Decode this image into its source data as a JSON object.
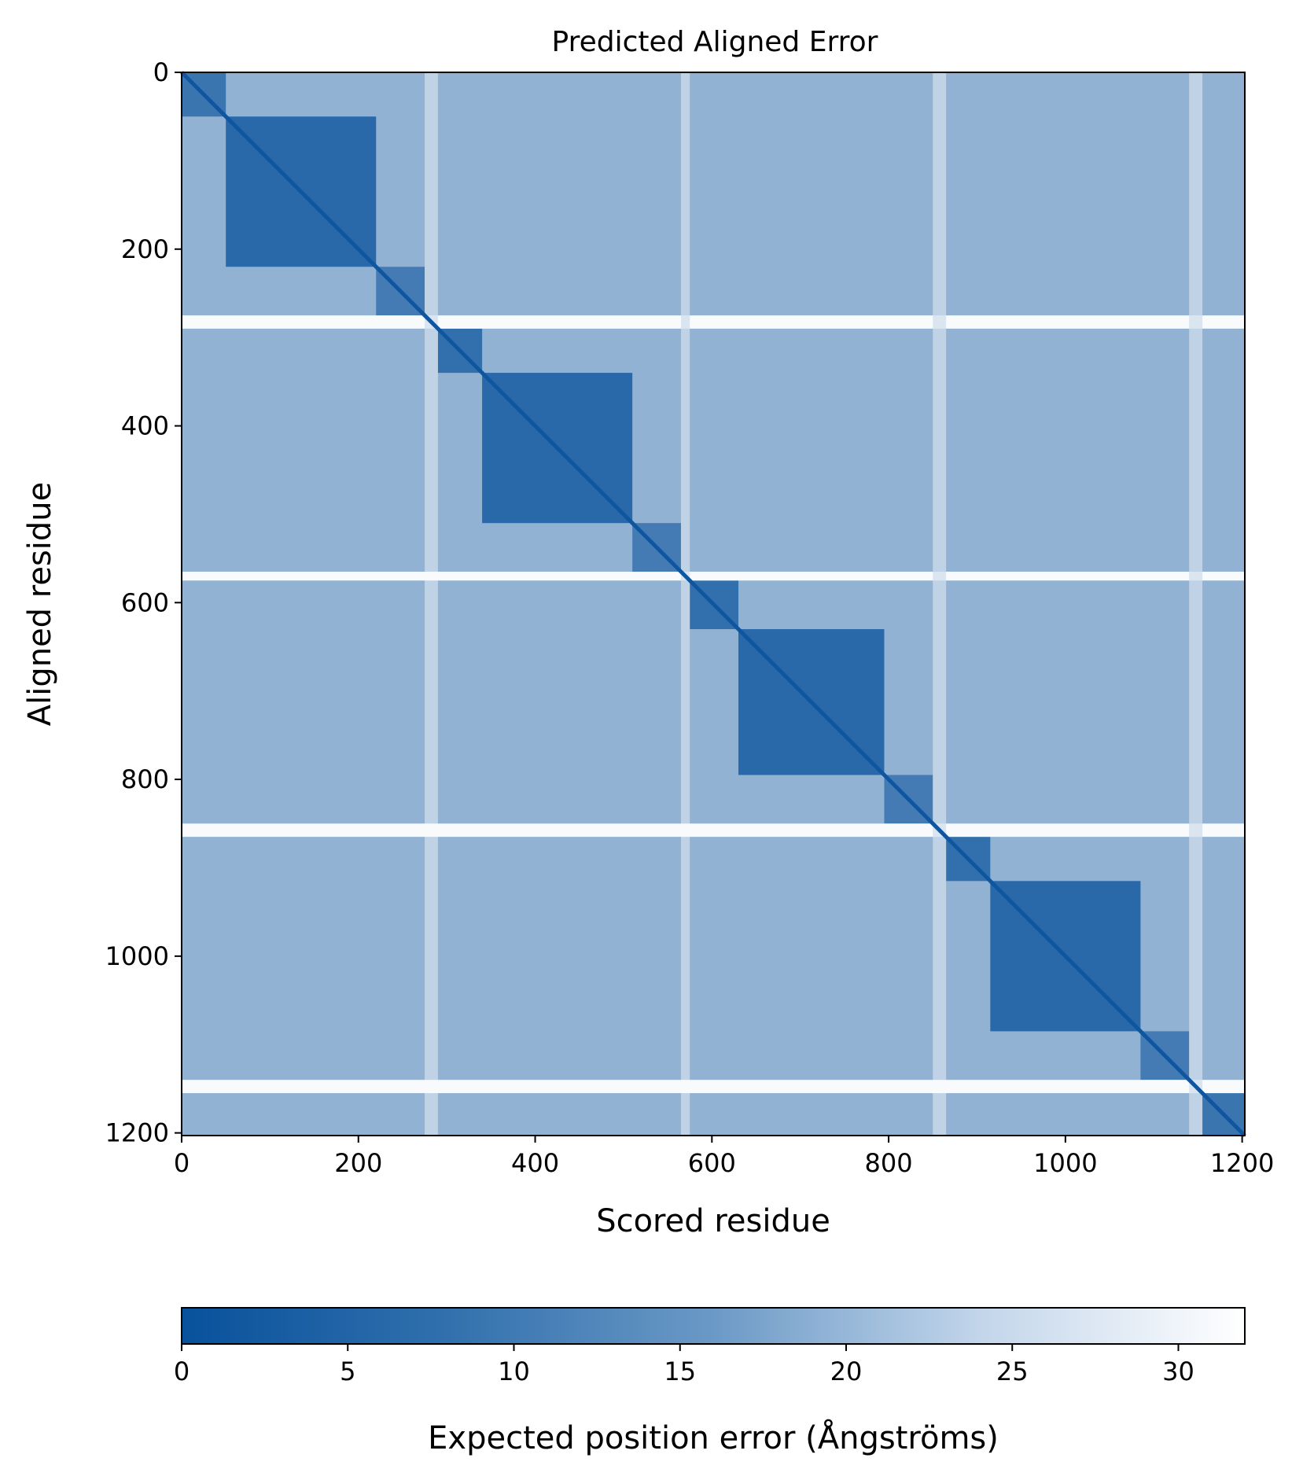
{
  "chart_data": {
    "type": "heatmap",
    "title": "Predicted Aligned Error",
    "xlabel": "Scored residue",
    "ylabel": "Aligned residue",
    "n_residues": 1203,
    "xlim": [
      0,
      1203
    ],
    "ylim": [
      1203,
      0
    ],
    "x_ticks": [
      0,
      200,
      400,
      600,
      800,
      1000,
      1200
    ],
    "y_ticks": [
      0,
      200,
      400,
      600,
      800,
      1000,
      1200
    ],
    "colorbar": {
      "label": "Expected position error (Ångströms)",
      "range": [
        0,
        32
      ],
      "ticks": [
        0,
        5,
        10,
        15,
        20,
        25,
        30
      ],
      "orientation": "horizontal",
      "placement": "bottom",
      "color_low": "#08519c",
      "color_high": "#ffffff"
    },
    "domains": [
      {
        "range": [
          0,
          50
        ],
        "intra_error": 5
      },
      {
        "range": [
          50,
          220
        ],
        "intra_error": 3
      },
      {
        "range": [
          220,
          275
        ],
        "intra_error": 6
      },
      {
        "range": [
          290,
          340
        ],
        "intra_error": 4
      },
      {
        "range": [
          340,
          510
        ],
        "intra_error": 3
      },
      {
        "range": [
          510,
          565
        ],
        "intra_error": 6
      },
      {
        "range": [
          575,
          630
        ],
        "intra_error": 4
      },
      {
        "range": [
          630,
          795
        ],
        "intra_error": 3
      },
      {
        "range": [
          795,
          850
        ],
        "intra_error": 6
      },
      {
        "range": [
          865,
          915
        ],
        "intra_error": 4
      },
      {
        "range": [
          915,
          1085
        ],
        "intra_error": 3
      },
      {
        "range": [
          1085,
          1140
        ],
        "intra_error": 6
      },
      {
        "range": [
          1155,
          1203
        ],
        "intra_error": 5
      }
    ],
    "inter_domain_error": 16,
    "linker_rows": [
      [
        275,
        290
      ],
      [
        565,
        575
      ],
      [
        850,
        865
      ],
      [
        1140,
        1155
      ]
    ],
    "linker_error": 31,
    "diagonal_error": 0.5
  }
}
